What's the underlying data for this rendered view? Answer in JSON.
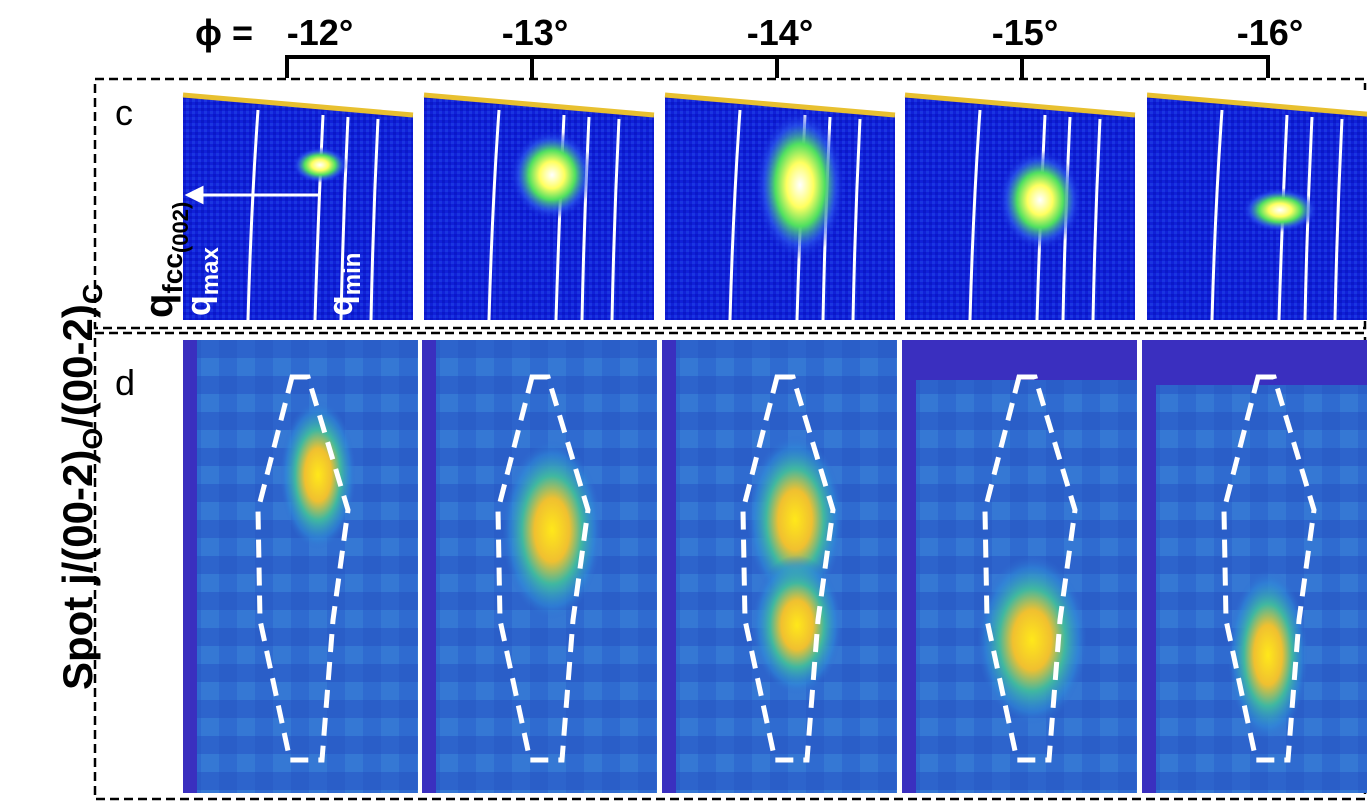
{
  "header": {
    "phi_label": "ϕ =",
    "angles": [
      "-12°",
      "-13°",
      "-14°",
      "-15°",
      "-16°"
    ]
  },
  "y_label": {
    "parts": [
      "Spot j/(00-2)",
      "O",
      "/(00-2)",
      "C"
    ]
  },
  "panel_c": {
    "label": "c",
    "q_fcc": "q",
    "q_fcc_sub": "fcc",
    "q_fcc_index": "(002)",
    "q_max": "q",
    "q_max_sub": "max",
    "q_min": "q",
    "q_min_sub": "min"
  },
  "panel_d": {
    "label": "d"
  }
}
